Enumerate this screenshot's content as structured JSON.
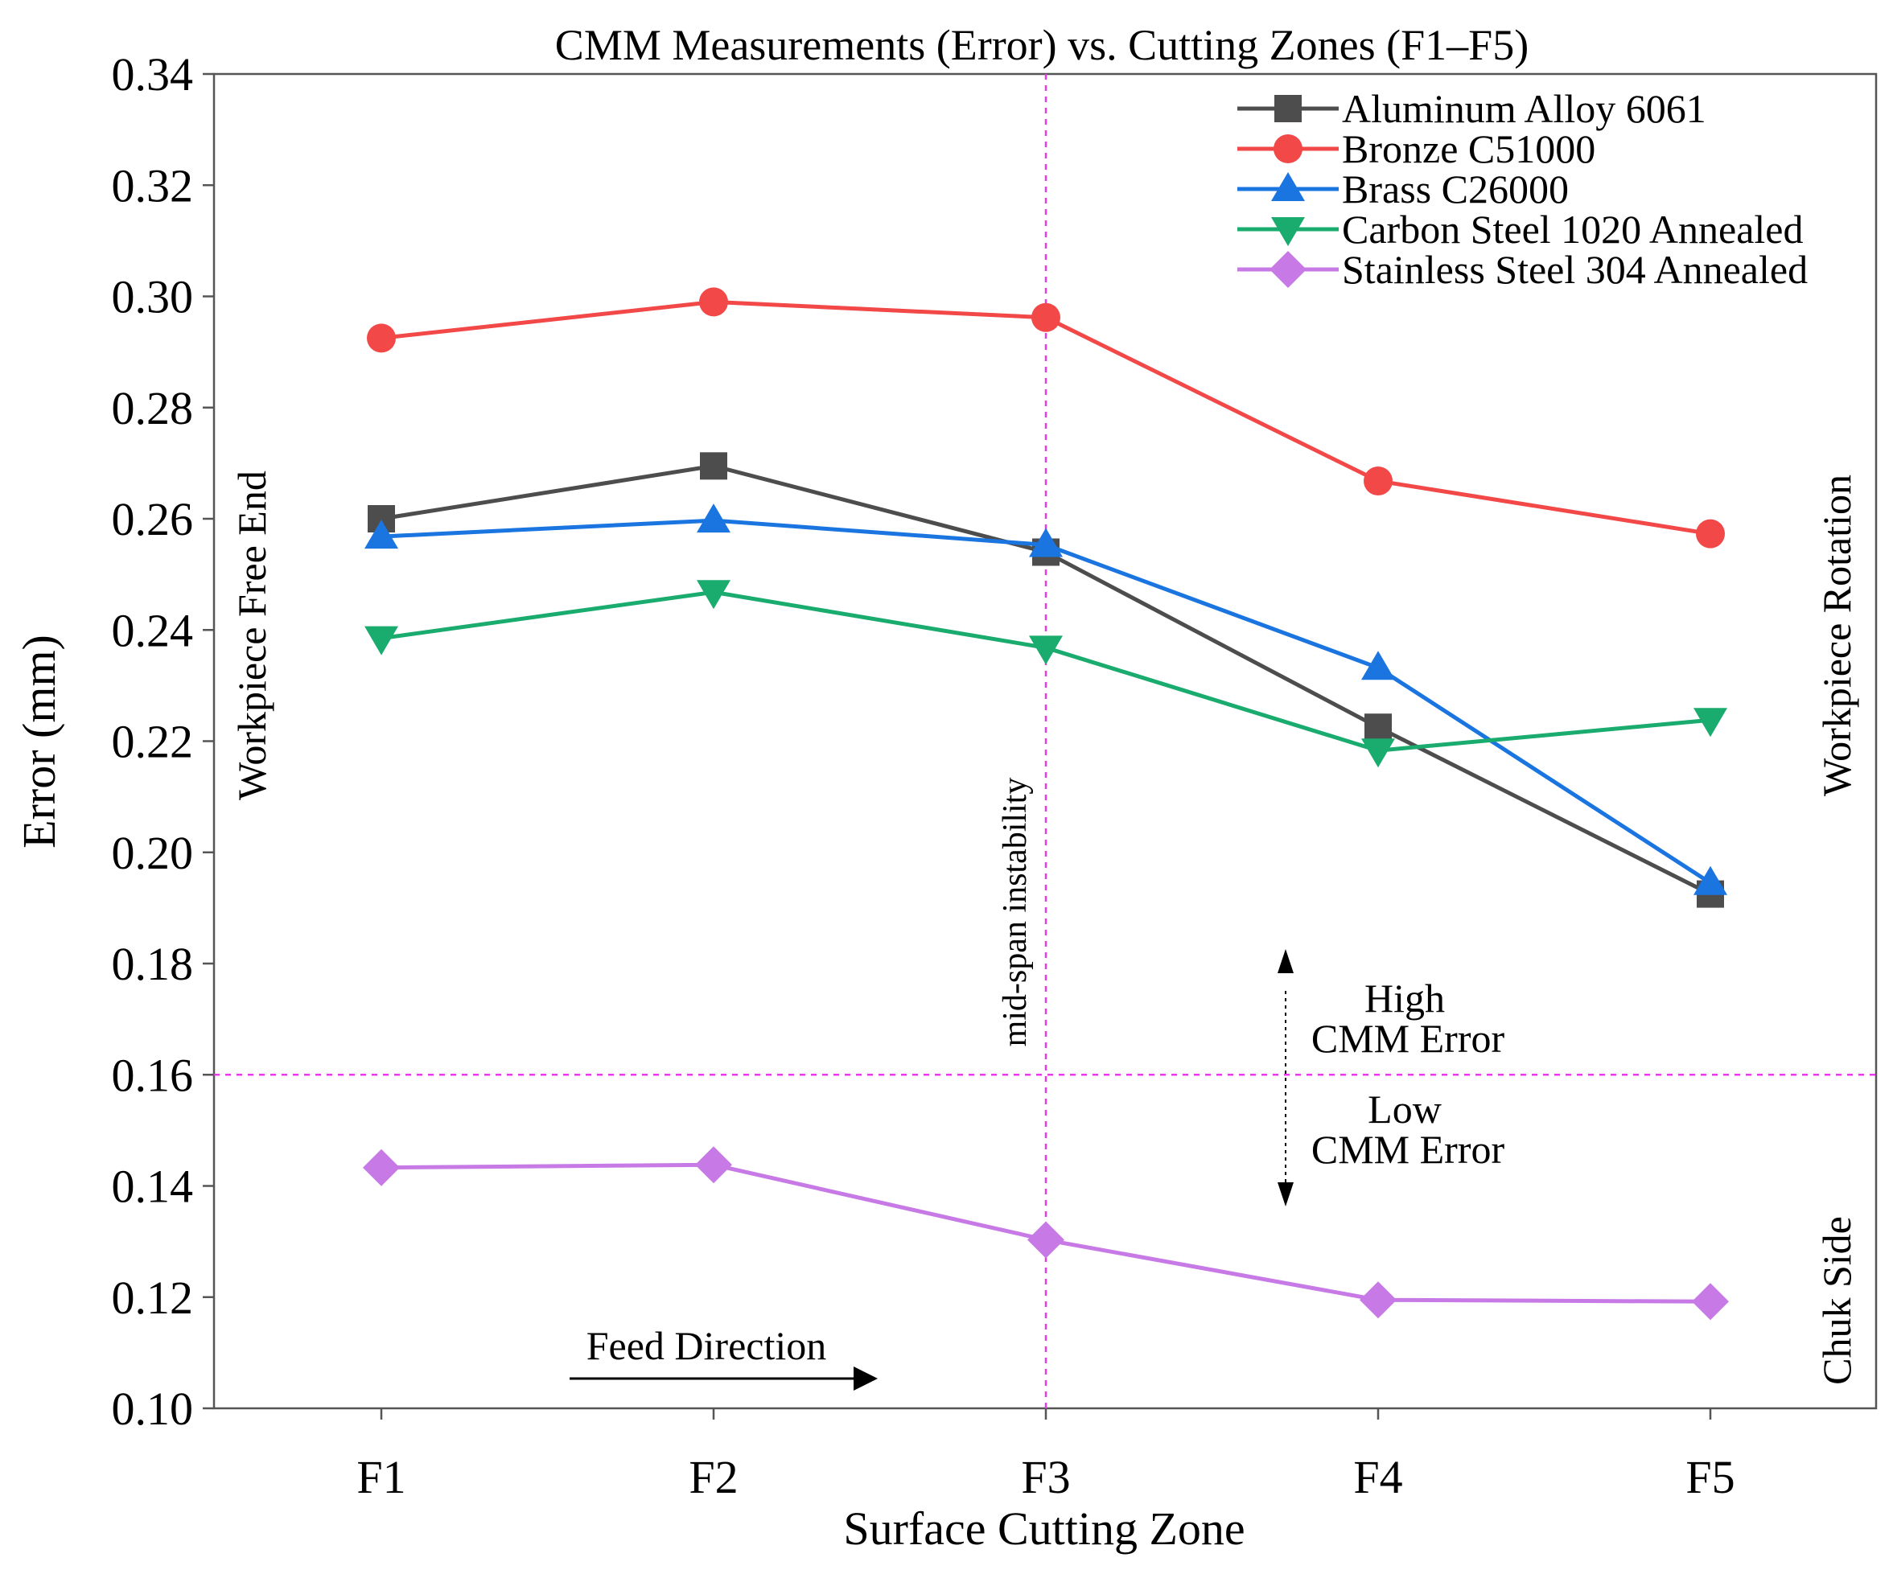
{
  "chart_data": {
    "type": "line",
    "title": "CMM Measurements (Error) vs. Cutting Zones (F1–F5)",
    "xlabel": "Surface Cutting Zone",
    "ylabel": "Error (mm)",
    "categories": [
      "F1",
      "F2",
      "F3",
      "F4",
      "F5"
    ],
    "ylim": [
      0.1,
      0.34
    ],
    "yticks": [
      "0.10",
      "0.12",
      "0.14",
      "0.16",
      "0.18",
      "0.20",
      "0.22",
      "0.24",
      "0.26",
      "0.28",
      "0.30",
      "0.32",
      "0.34"
    ],
    "grid": false,
    "legend_position": "top-right",
    "series": [
      {
        "name": "Aluminum Alloy 6061",
        "marker": "square",
        "color": "#4d4d4d",
        "values": [
          0.26,
          0.2695,
          0.254,
          0.2225,
          0.1925
        ]
      },
      {
        "name": "Bronze C51000",
        "marker": "circle",
        "color": "#f24848",
        "values": [
          0.2925,
          0.299,
          0.2962,
          0.2668,
          0.2573
        ]
      },
      {
        "name": "Brass C26000",
        "marker": "triangle-up",
        "color": "#1a75e0",
        "values": [
          0.2568,
          0.2597,
          0.2553,
          0.2332,
          0.1945
        ]
      },
      {
        "name": "Carbon Steel 1020 Annealed",
        "marker": "triangle-down",
        "color": "#1aab6e",
        "values": [
          0.2385,
          0.2468,
          0.2368,
          0.2183,
          0.2238
        ]
      },
      {
        "name": "Stainless Steel 304 Annealed",
        "marker": "diamond",
        "color": "#c77ae6",
        "values": [
          0.1433,
          0.1438,
          0.1303,
          0.1195,
          0.1192
        ]
      }
    ],
    "reference_lines": [
      {
        "orientation": "vertical",
        "at_category": "F3",
        "label": "mid-span instability",
        "color": "#e63ce6"
      },
      {
        "orientation": "horizontal",
        "at_value": 0.16,
        "color": "#e63ce6"
      }
    ],
    "annotations": {
      "left_side": "Workpiece Free End",
      "right_top": "Workpiece Rotation",
      "right_bottom": "Chuk Side",
      "feed": "Feed Direction",
      "high_line1": "High",
      "high_line2": "CMM Error",
      "low_line1": "Low",
      "low_line2": "CMM Error"
    }
  }
}
